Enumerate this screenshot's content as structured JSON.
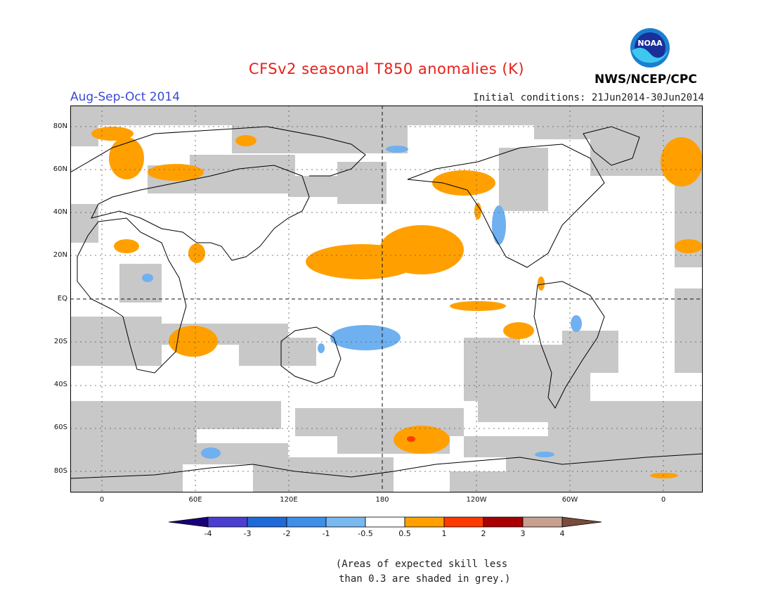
{
  "title": "CFSv2 seasonal T850 anomalies (K)",
  "season": "Aug-Sep-Oct 2014",
  "initial_conditions": "Initial conditions: 21Jun2014-30Jun2014",
  "agency": "NWS/NCEP/CPC",
  "logo_text": "NOAA",
  "lat_labels": [
    "80N",
    "60N",
    "40N",
    "20N",
    "EQ",
    "20S",
    "40S",
    "60S",
    "80S"
  ],
  "lon_labels": [
    "0",
    "60E",
    "120E",
    "180",
    "120W",
    "60W",
    "0"
  ],
  "colorbar": {
    "labels": [
      "-4",
      "-3",
      "-2",
      "-1",
      "-0.5",
      "0.5",
      "1",
      "2",
      "3",
      "4"
    ],
    "colors": [
      "#1a0078",
      "#4a3fd0",
      "#1f6ad8",
      "#3f8fe8",
      "#7ab8f0",
      "#ffffff",
      "#ffa000",
      "#ff3a00",
      "#a80000",
      "#c8a090",
      "#7a4a3a"
    ]
  },
  "note": "(Areas of expected skill less\n than 0.3 are shaded in grey.)",
  "colors": {
    "skill_grey": "#c8c8c8",
    "warm": "#ffa000",
    "cool": "#6fb0f0",
    "hot": "#ff3a00"
  }
}
